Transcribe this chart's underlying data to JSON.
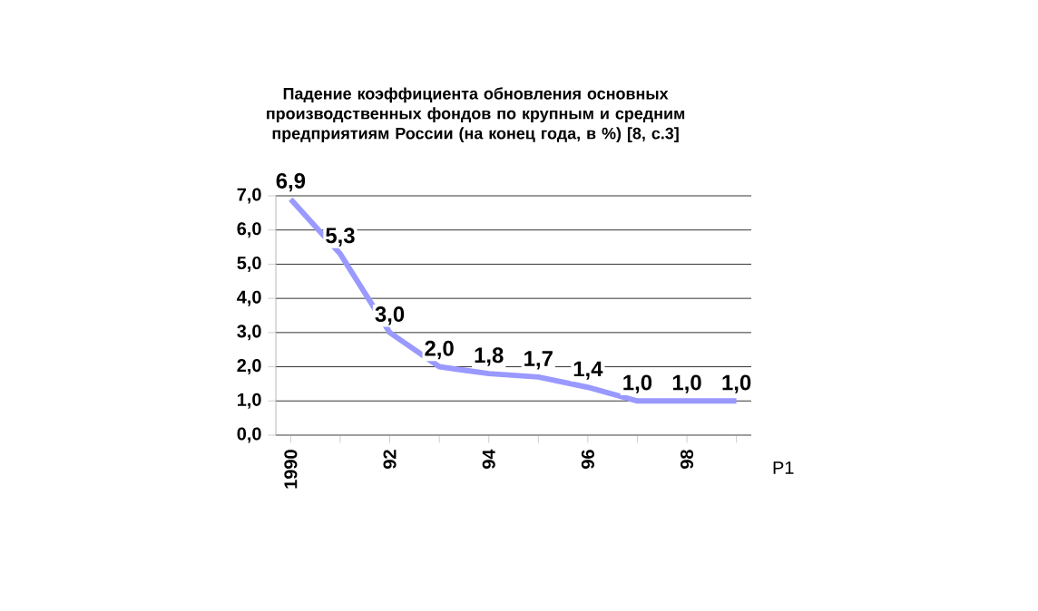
{
  "chart_data": {
    "type": "line",
    "title": "Падение коэффициента обновления основных производственных фондов по крупным и средним предприятиям России (на конец года, в %) [8, с.3]",
    "categories": [
      "1990",
      null,
      "92",
      null,
      "94",
      null,
      "96",
      null,
      "98",
      null
    ],
    "series": [
      {
        "name": "P1",
        "color": "#9999ff",
        "values": [
          6.9,
          5.3,
          3.0,
          2.0,
          1.8,
          1.7,
          1.4,
          1.0,
          1.0,
          1.0
        ],
        "value_labels": [
          "6,9",
          "5,3",
          "3,0",
          "2,0",
          "1,8",
          "1,7",
          "1,4",
          "1,0",
          "1,0",
          "1,0"
        ]
      }
    ],
    "ylim": [
      0,
      7
    ],
    "yticks": [
      {
        "value": 0,
        "label": "0,0"
      },
      {
        "value": 1,
        "label": "1,0"
      },
      {
        "value": 2,
        "label": "2,0"
      },
      {
        "value": 3,
        "label": "3,0"
      },
      {
        "value": 4,
        "label": "4,0"
      },
      {
        "value": 5,
        "label": "5,0"
      },
      {
        "value": 6,
        "label": "6,0"
      },
      {
        "value": 7,
        "label": "7,0"
      }
    ],
    "grid": "y",
    "legend": false,
    "marker": "none",
    "line_style": "solid"
  }
}
